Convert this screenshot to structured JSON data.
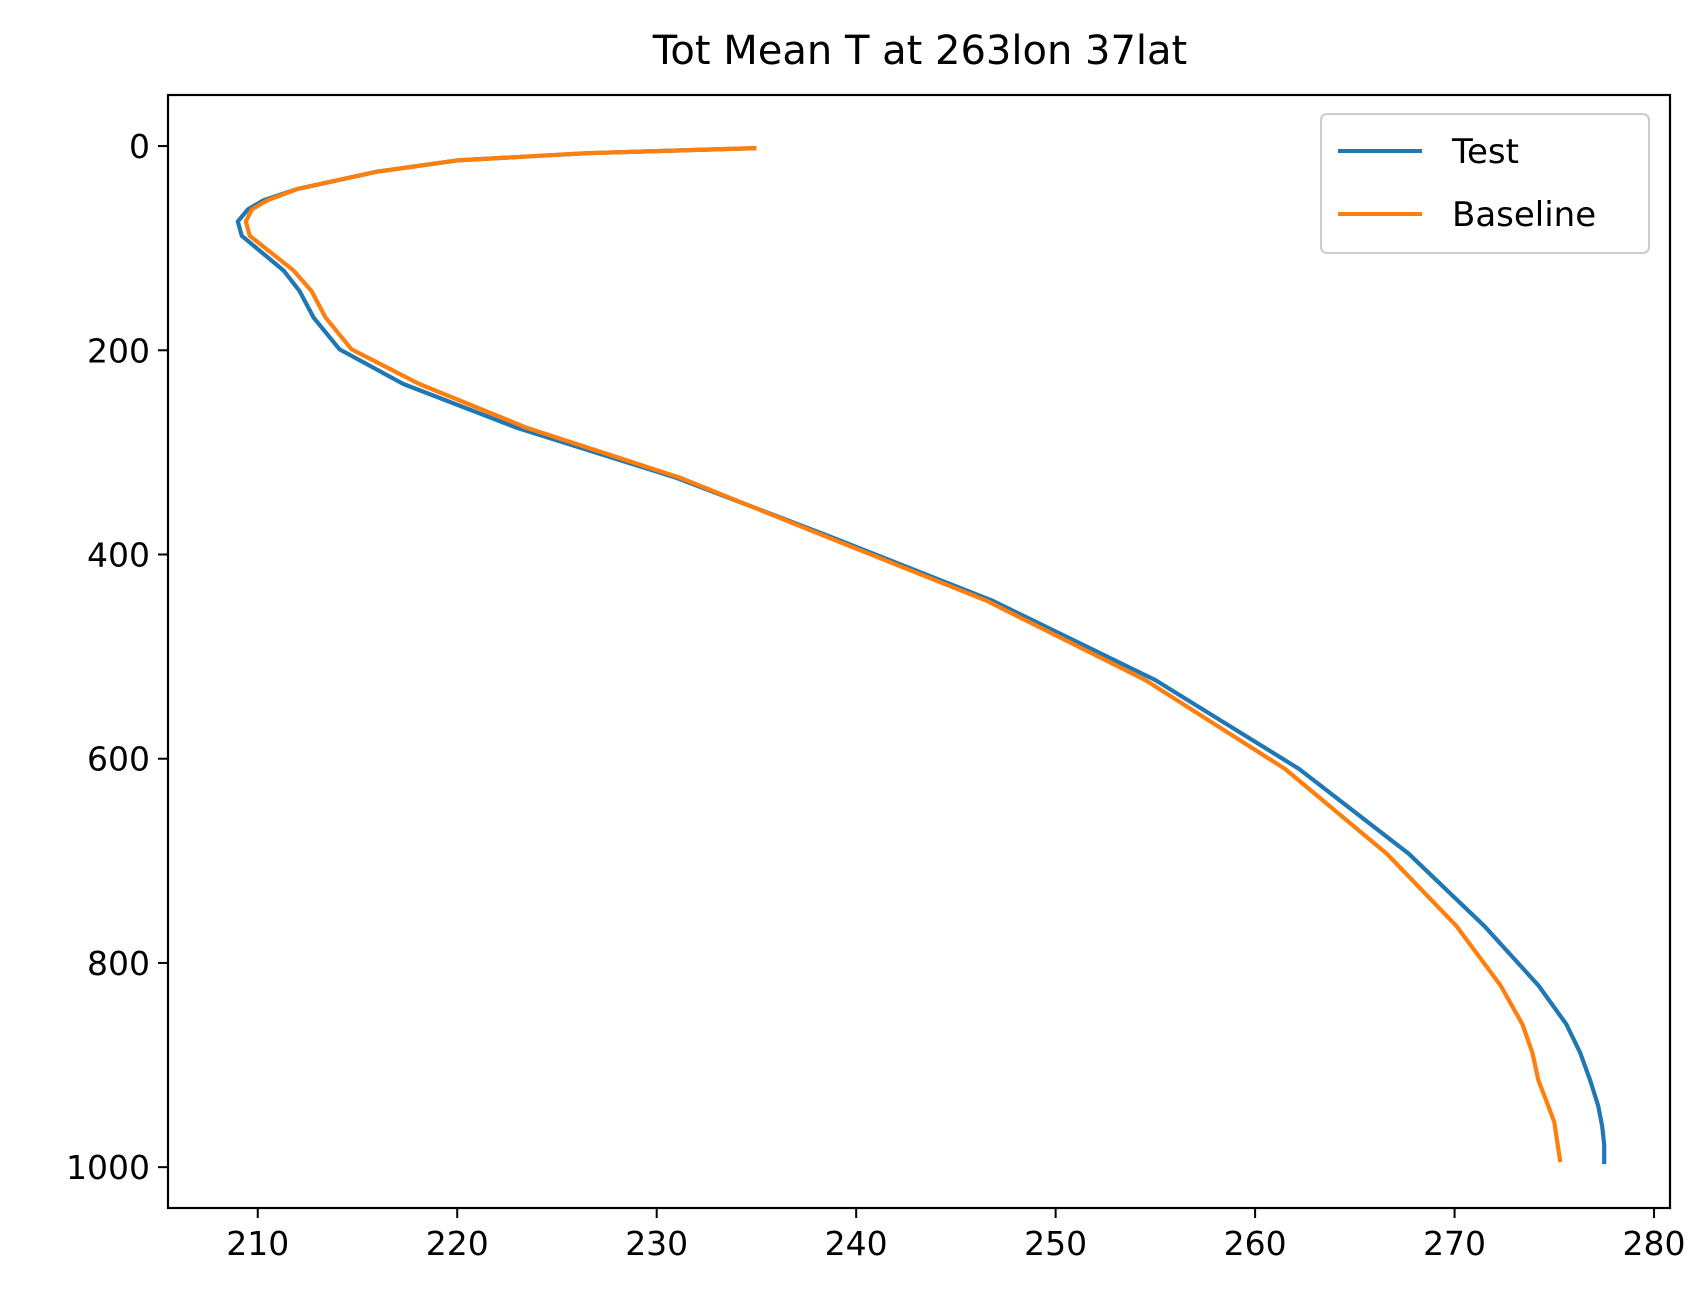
{
  "chart_data": {
    "type": "line",
    "title": "Tot Mean T at 263lon 37lat",
    "xlabel": "",
    "ylabel": "",
    "xlim": [
      205.5,
      280.8
    ],
    "ylim": [
      1040,
      -50
    ],
    "y_inverted": true,
    "x_ticks": [
      210,
      220,
      230,
      240,
      250,
      260,
      270,
      280
    ],
    "y_ticks": [
      0,
      200,
      400,
      600,
      800,
      1000
    ],
    "legend": {
      "position": "top-right",
      "entries": [
        "Test",
        "Baseline"
      ]
    },
    "grid": false,
    "series": [
      {
        "name": "Test",
        "color": "#1f77b4",
        "points": [
          [
            235,
            2
          ],
          [
            226.5,
            7
          ],
          [
            220,
            14
          ],
          [
            216,
            25
          ],
          [
            212,
            42
          ],
          [
            210.3,
            53
          ],
          [
            209.5,
            62
          ],
          [
            209.0,
            74
          ],
          [
            209.2,
            88
          ],
          [
            211.3,
            122
          ],
          [
            212.1,
            142
          ],
          [
            212.8,
            168
          ],
          [
            214.1,
            199
          ],
          [
            217.3,
            233
          ],
          [
            223,
            276
          ],
          [
            231,
            325
          ],
          [
            238.5,
            381
          ],
          [
            246.8,
            445
          ],
          [
            255,
            523
          ],
          [
            262.2,
            610
          ],
          [
            267.7,
            693
          ],
          [
            271.5,
            764
          ],
          [
            274.2,
            822
          ],
          [
            275.6,
            860
          ],
          [
            276.3,
            888
          ],
          [
            276.8,
            915
          ],
          [
            277.2,
            940
          ],
          [
            277.4,
            960
          ],
          [
            277.5,
            978
          ],
          [
            277.5,
            997
          ]
        ]
      },
      {
        "name": "Baseline",
        "color": "#ff7f0e",
        "points": [
          [
            235,
            2
          ],
          [
            226.5,
            7
          ],
          [
            220,
            14
          ],
          [
            216,
            25
          ],
          [
            212,
            42
          ],
          [
            210.5,
            53
          ],
          [
            209.7,
            62
          ],
          [
            209.4,
            74
          ],
          [
            209.6,
            88
          ],
          [
            211.8,
            122
          ],
          [
            212.7,
            142
          ],
          [
            213.4,
            168
          ],
          [
            214.7,
            199
          ],
          [
            218.1,
            233
          ],
          [
            223.5,
            276
          ],
          [
            231.2,
            325
          ],
          [
            238.3,
            381
          ],
          [
            246.5,
            445
          ],
          [
            254.5,
            523
          ],
          [
            261.5,
            610
          ],
          [
            266.6,
            693
          ],
          [
            270.1,
            764
          ],
          [
            272.3,
            822
          ],
          [
            273.4,
            860
          ],
          [
            273.9,
            888
          ],
          [
            274.2,
            915
          ],
          [
            274.6,
            935
          ],
          [
            275.0,
            956
          ],
          [
            275.3,
            995
          ]
        ]
      }
    ]
  }
}
